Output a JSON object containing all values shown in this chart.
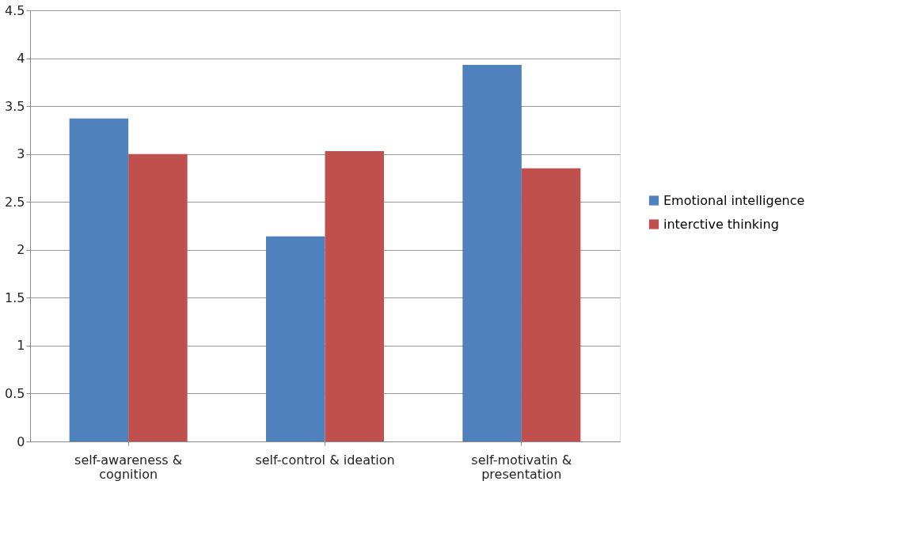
{
  "chart_data": {
    "type": "bar",
    "categories": [
      "self-awareness & cognition",
      "self-control & ideation",
      "self-motivatin & presentation"
    ],
    "series": [
      {
        "name": "Emotional intelligence",
        "color": "#4f81bd",
        "values": [
          3.37,
          2.14,
          3.93
        ]
      },
      {
        "name": "interctive thinking",
        "color": "#c0504d",
        "values": [
          3.0,
          3.03,
          2.85
        ]
      }
    ],
    "ylim": [
      0,
      4.5
    ],
    "yticks": [
      0,
      0.5,
      1,
      1.5,
      2,
      2.5,
      3,
      3.5,
      4,
      4.5
    ],
    "grid": "y",
    "legend": "right"
  }
}
